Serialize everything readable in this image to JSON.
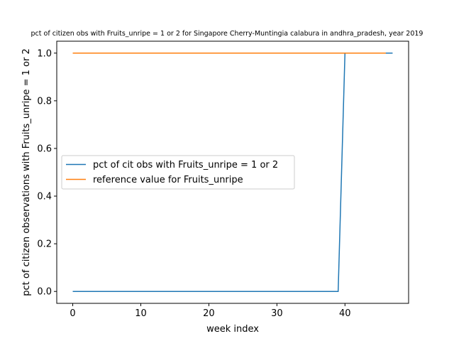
{
  "chart_data": {
    "type": "line",
    "title": "pct of citizen obs with Fruits_unripe = 1 or 2 for Singapore Cherry-Muntingia calabura in andhra_pradesh, year 2019",
    "xlabel": "week index",
    "ylabel": "pct of citizen observations with Fruits_unripe = 1 or 2",
    "xlim": [
      -2.35,
      49.35
    ],
    "ylim": [
      -0.05,
      1.05
    ],
    "xticks": [
      0,
      10,
      20,
      30,
      40
    ],
    "xtick_labels": [
      "0",
      "10",
      "20",
      "30",
      "40"
    ],
    "yticks": [
      0.0,
      0.2,
      0.4,
      0.6,
      0.8,
      1.0
    ],
    "ytick_labels": [
      "0.0",
      "0.2",
      "0.4",
      "0.6",
      "0.8",
      "1.0"
    ],
    "legend_position": "center-left",
    "series": [
      {
        "name": "pct of cit obs with Fruits_unripe = 1 or 2",
        "color": "#1f77b4",
        "x": [
          0,
          39,
          40,
          47
        ],
        "y": [
          0.0,
          0.0,
          1.0,
          1.0
        ]
      },
      {
        "name": "reference value for Fruits_unripe",
        "color": "#ff7f0e",
        "x": [
          0,
          46
        ],
        "y": [
          1.0,
          1.0
        ]
      }
    ]
  }
}
